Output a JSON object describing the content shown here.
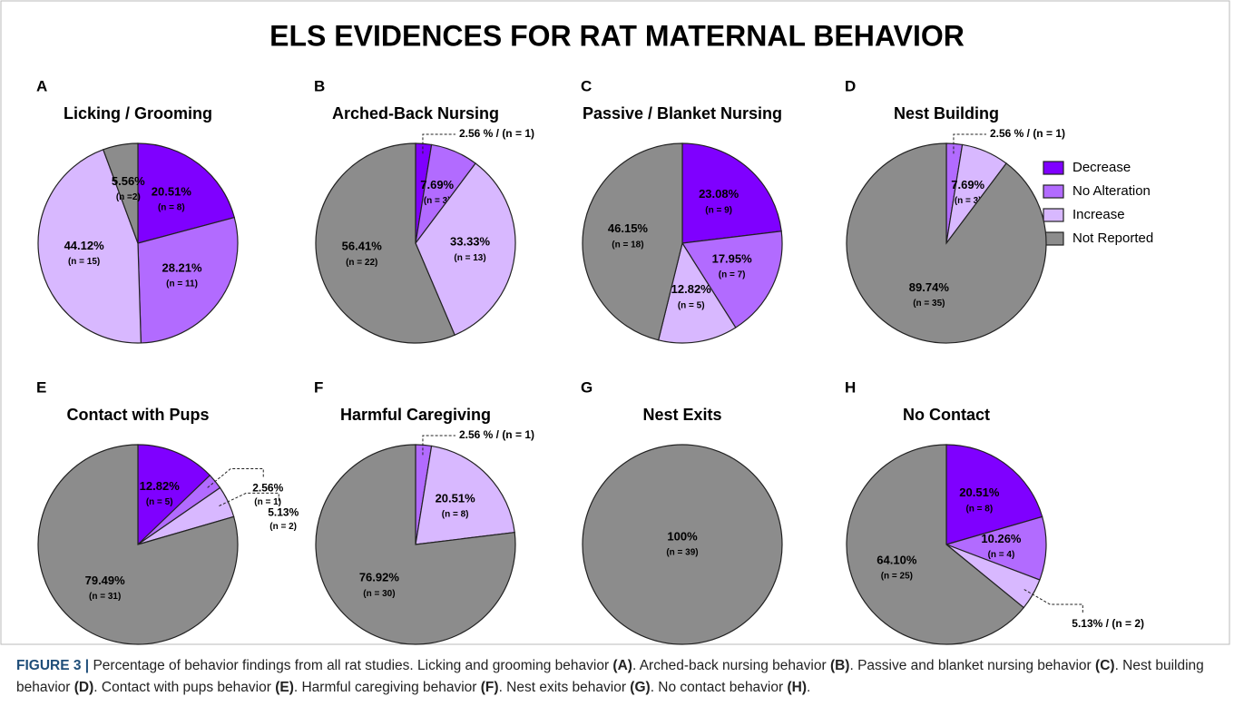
{
  "figure": {
    "title": "ELS EVIDENCES FOR RAT MATERNAL BEHAVIOR",
    "caption": [
      "FIGURE 3 |",
      " Percentage of behavior findings from all rat studies. Licking and grooming behavior ",
      "(A)",
      ". Arched-back nursing behavior ",
      "(B)",
      ". Passive and blanket nursing behavior ",
      "(C)",
      ". Nest building behavior ",
      "(D)",
      ". Contact with pups behavior ",
      "(E)",
      ". Harmful caregiving behavior ",
      "(F)",
      ". Nest exits behavior ",
      "(G)",
      ". No contact behavior ",
      "(H)",
      "."
    ]
  },
  "legend": {
    "names": [
      "Decrease",
      "No Alteration",
      "Increase",
      "Not Reported"
    ],
    "colors": [
      "#7f00ff",
      "#b26bff",
      "#d8b8ff",
      "#8c8c8c"
    ]
  },
  "chart_data": [
    {
      "type": "pie",
      "panel": "A",
      "title": "Licking / Grooming",
      "values": [
        20.51,
        28.21,
        44.12,
        5.56
      ],
      "value_labels": [
        "20.51%",
        "28.21%",
        "44.12%",
        "5.56%"
      ],
      "n_labels": [
        "(n = 8)",
        "(n = 11)",
        "(n = 15)",
        "(n =2)"
      ]
    },
    {
      "type": "pie",
      "panel": "B",
      "title": "Arched-Back Nursing",
      "values": [
        2.56,
        7.69,
        33.33,
        56.41
      ],
      "value_labels": [
        "2.56 % / (n = 1)",
        "7.69%",
        "33.33%",
        "56.41%"
      ],
      "n_labels": [
        null,
        "(n = 3)",
        "(n = 13)",
        "(n = 22)"
      ]
    },
    {
      "type": "pie",
      "panel": "C",
      "title": "Passive / Blanket Nursing",
      "values": [
        23.08,
        17.95,
        12.82,
        46.15
      ],
      "value_labels": [
        "23.08%",
        "17.95%",
        "12.82%",
        "46.15%"
      ],
      "n_labels": [
        "(n = 9)",
        "(n = 7)",
        "(n = 5)",
        "(n = 18)"
      ]
    },
    {
      "type": "pie",
      "panel": "D",
      "title": "Nest Building",
      "values": [
        0,
        2.56,
        7.69,
        89.74
      ],
      "value_labels": [
        null,
        "2.56 % / (n = 1)",
        "7.69%",
        "89.74%"
      ],
      "n_labels": [
        null,
        null,
        "(n = 3)",
        "(n = 35)"
      ]
    },
    {
      "type": "pie",
      "panel": "E",
      "title": "Contact with Pups",
      "values": [
        12.82,
        2.56,
        5.13,
        79.49
      ],
      "value_labels": [
        "12.82%",
        "2.56%",
        "5.13%",
        "79.49%"
      ],
      "n_labels": [
        "(n = 5)",
        "(n = 1)",
        "(n = 2)",
        "(n = 31)"
      ]
    },
    {
      "type": "pie",
      "panel": "F",
      "title": "Harmful Caregiving",
      "values": [
        0,
        2.56,
        20.51,
        76.92
      ],
      "value_labels": [
        null,
        "2.56 % / (n = 1)",
        "20.51%",
        "76.92%"
      ],
      "n_labels": [
        null,
        null,
        "(n = 8)",
        "(n = 30)"
      ]
    },
    {
      "type": "pie",
      "panel": "G",
      "title": "Nest Exits",
      "values": [
        0,
        0,
        0,
        100
      ],
      "value_labels": [
        null,
        null,
        null,
        "100%"
      ],
      "n_labels": [
        null,
        null,
        null,
        "(n = 39)"
      ]
    },
    {
      "type": "pie",
      "panel": "H",
      "title": "No Contact",
      "values": [
        20.51,
        10.26,
        5.13,
        64.1
      ],
      "value_labels": [
        "20.51%",
        "10.26%",
        "5.13% / (n = 2)",
        "64.10%"
      ],
      "n_labels": [
        "(n = 8)",
        "(n = 4)",
        null,
        "(n = 25)"
      ]
    }
  ]
}
